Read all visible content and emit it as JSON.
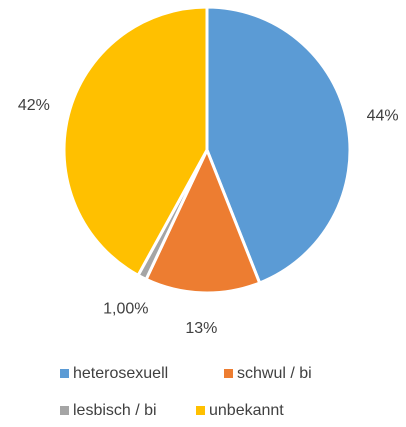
{
  "chart_data": {
    "type": "pie",
    "categories": [
      "heterosexuell",
      "schwul / bi",
      "lesbisch / bi",
      "unbekannt"
    ],
    "values": [
      44,
      13,
      1,
      42
    ],
    "value_labels": [
      "44%",
      "13%",
      "1,00%",
      "42%"
    ],
    "colors": [
      "#5b9bd5",
      "#ed7d31",
      "#a5a5a5",
      "#ffc000"
    ],
    "legend": "bottom"
  }
}
